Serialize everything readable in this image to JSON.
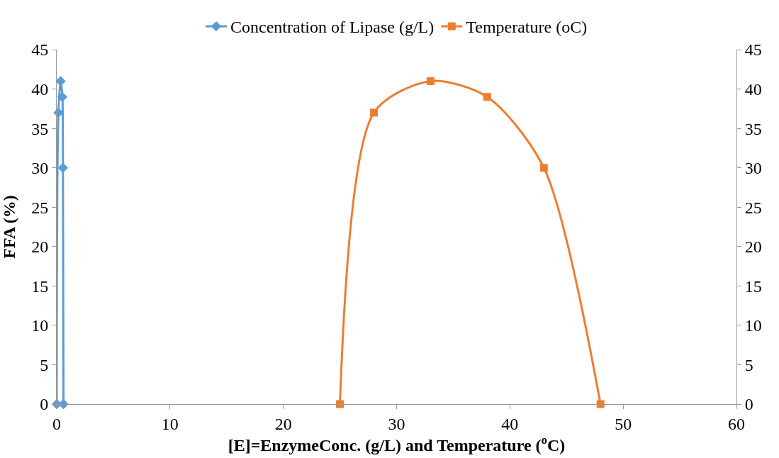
{
  "chart_data": {
    "type": "line",
    "xlabel": "[E]=EnzymeConc. (g/L) and Temperature ($^{o}$C)",
    "ylabel": "FFA (%)",
    "xlim": [
      0,
      60
    ],
    "xticks": [
      0,
      10,
      20,
      30,
      40,
      50,
      60
    ],
    "ylim": [
      0,
      45
    ],
    "yticks": [
      0,
      5,
      10,
      15,
      20,
      25,
      30,
      35,
      40,
      45
    ],
    "y2lim": [
      0,
      45
    ],
    "y2ticks": [
      0,
      5,
      10,
      15,
      20,
      25,
      30,
      35,
      40,
      45
    ],
    "legend": "top",
    "series": [
      {
        "name": "Concentration of Lipase (g/L)",
        "color": "#5b9bd5",
        "marker": "diamond",
        "x": [
          0,
          0.15,
          0.35,
          0.5,
          0.55,
          0.6
        ],
        "values": [
          0,
          37,
          41,
          39,
          30,
          0
        ]
      },
      {
        "name": "Temperature (oC)",
        "color": "#ed7d31",
        "marker": "square",
        "x": [
          25,
          28,
          33,
          38,
          43,
          48
        ],
        "values": [
          0,
          37,
          41,
          39,
          30,
          0
        ]
      }
    ]
  }
}
